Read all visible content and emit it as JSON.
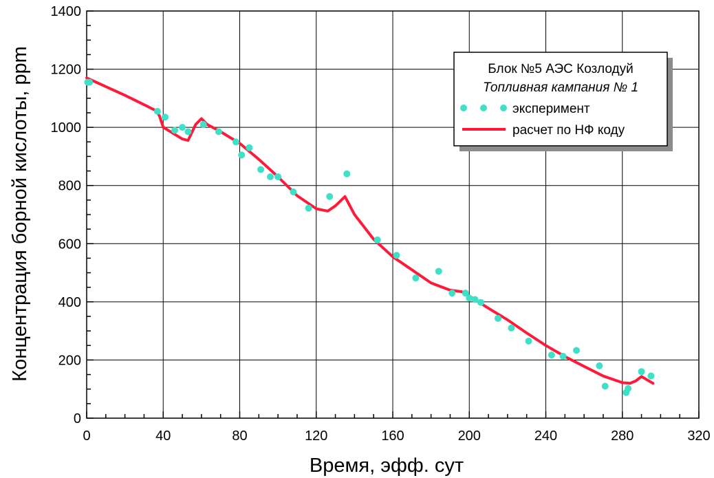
{
  "chart_data": {
    "type": "scatter",
    "title": "",
    "xlabel": "Время, эфф. сут",
    "ylabel": "Концентрация борной кислоты, ppm",
    "xlim": [
      0,
      320
    ],
    "ylim": [
      0,
      1400
    ],
    "x_ticks": [
      0,
      40,
      80,
      120,
      160,
      200,
      240,
      280,
      320
    ],
    "y_ticks": [
      0,
      200,
      400,
      600,
      800,
      1000,
      1200,
      1400
    ],
    "x_tick_labels": [
      "0",
      "40",
      "80",
      "120",
      "160",
      "200",
      "240",
      "280",
      "320"
    ],
    "y_tick_labels": [
      "0",
      "200",
      "400",
      "600",
      "800",
      "1000",
      "1200",
      "1400"
    ],
    "grid": true,
    "legend_position": "top-right",
    "legend": {
      "title_line1": "Блок №5 АЭС Козлодуй",
      "title_line2": "Топливная кампания № 1",
      "items": [
        {
          "label": "эксперимент",
          "marker": "circle",
          "color": "#40e0c8"
        },
        {
          "label": "расчет по НФ коду",
          "marker": "line",
          "color": "#ff1a3a"
        }
      ]
    },
    "series": [
      {
        "name": "эксперимент",
        "kind": "scatter",
        "color": "#40e0c8",
        "x": [
          0.5,
          1.5,
          37,
          41,
          46,
          50,
          53,
          61,
          69,
          78,
          81,
          85,
          91,
          96,
          100,
          108,
          116,
          127,
          136,
          152,
          162,
          172,
          184,
          191,
          198,
          200,
          203,
          206,
          215,
          222,
          231,
          243,
          249,
          256,
          268,
          271,
          282,
          283,
          290,
          295
        ],
        "y": [
          1155,
          1155,
          1055,
          1035,
          990,
          1000,
          985,
          1010,
          985,
          950,
          905,
          930,
          855,
          830,
          830,
          778,
          722,
          762,
          840,
          613,
          560,
          482,
          505,
          430,
          430,
          413,
          408,
          398,
          343,
          310,
          265,
          217,
          213,
          233,
          180,
          110,
          88,
          102,
          160,
          145
        ]
      },
      {
        "name": "расчет по НФ коду",
        "kind": "line",
        "color": "#ff1a3a",
        "x": [
          0,
          10,
          20,
          30,
          36,
          38,
          40,
          45,
          50,
          53,
          57,
          60,
          63,
          70,
          80,
          90,
          100,
          110,
          120,
          126,
          130,
          135,
          140,
          150,
          160,
          170,
          180,
          190,
          196,
          200,
          210,
          220,
          230,
          240,
          250,
          260,
          270,
          280,
          284,
          287,
          290,
          296
        ],
        "y": [
          1170,
          1140,
          1110,
          1078,
          1058,
          1040,
          1000,
          980,
          960,
          955,
          1010,
          1030,
          1010,
          985,
          945,
          890,
          830,
          765,
          720,
          712,
          730,
          762,
          700,
          615,
          555,
          510,
          465,
          440,
          435,
          420,
          378,
          338,
          293,
          250,
          212,
          178,
          145,
          122,
          120,
          128,
          143,
          120
        ]
      }
    ]
  }
}
